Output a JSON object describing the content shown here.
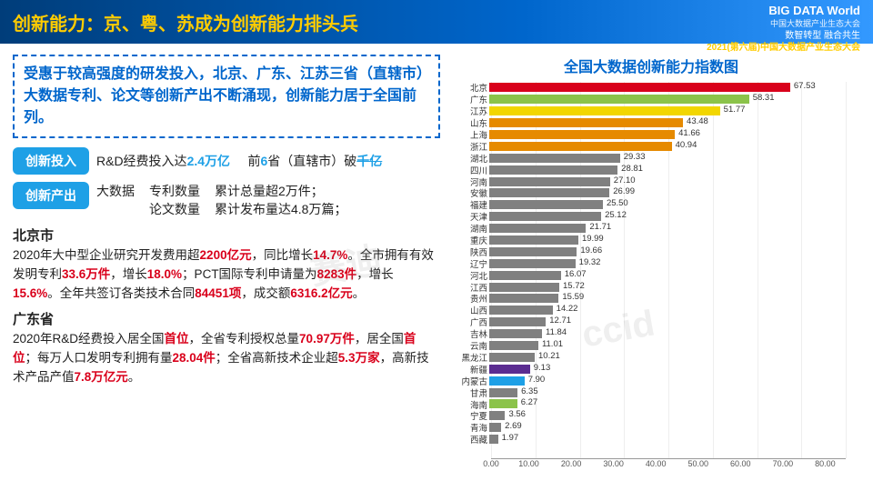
{
  "header": {
    "title": "创新能力：京、粤、苏成为创新能力排头兵",
    "logo": "BIG DATA World",
    "logo_cn": "中国大数据产业生态大会",
    "sub1": "数智转型 融合共生",
    "sub2": "2021(第六届)中国大数据产业生态大会"
  },
  "summary": "受惠于较高强度的研发投入，北京、广东、江苏三省（直辖市）大数据专利、论文等创新产出不断涌现，创新能力居于全国前列。",
  "row1": {
    "tag": "创新投入",
    "t1a": "R&D经费投入达",
    "t1b": "2.4万亿",
    "t2a": "前",
    "t2b": "6",
    "t2c": "省（直辖市）破",
    "t2d": "千亿"
  },
  "row2": {
    "tag": "创新产出",
    "l1": "大数据",
    "c1a": "专利数量",
    "c1b": "论文数量",
    "c2a": "累计总量超2万件；",
    "c2b": "累计发布量达4.8万篇；"
  },
  "cities": {
    "bj_name": "北京市",
    "bj_text_parts": [
      {
        "t": "2020年大中型企业研究开发费用超",
        "r": false
      },
      {
        "t": "2200亿元",
        "r": true
      },
      {
        "t": "，同比增长",
        "r": false
      },
      {
        "t": "14.7%",
        "r": true
      },
      {
        "t": "。全市拥有有效发明专利",
        "r": false
      },
      {
        "t": "33.6万件",
        "r": true
      },
      {
        "t": "，增长",
        "r": false
      },
      {
        "t": "18.0%",
        "r": true
      },
      {
        "t": "；PCT国际专利申请量为",
        "r": false
      },
      {
        "t": "8283件",
        "r": true
      },
      {
        "t": "，增长",
        "r": false
      },
      {
        "t": "15.6%",
        "r": true
      },
      {
        "t": "。全年共签订各类技术合同",
        "r": false
      },
      {
        "t": "84451项",
        "r": true
      },
      {
        "t": "，成交额",
        "r": false
      },
      {
        "t": "6316.2亿元",
        "r": true
      },
      {
        "t": "。",
        "r": false
      }
    ],
    "gd_name": "广东省",
    "gd_text_parts": [
      {
        "t": "2020年R&D经费投入居全国",
        "r": false
      },
      {
        "t": "首位",
        "r": true
      },
      {
        "t": "，全省专利授权总量",
        "r": false
      },
      {
        "t": "70.97万件",
        "r": true
      },
      {
        "t": "，居全国",
        "r": false
      },
      {
        "t": "首位",
        "r": true
      },
      {
        "t": "；每万人口发明专利拥有量",
        "r": false
      },
      {
        "t": "28.04件",
        "r": true
      },
      {
        "t": "；全省高新技术企业超",
        "r": false
      },
      {
        "t": "5.3万家",
        "r": true
      },
      {
        "t": "，高新技术产品产值",
        "r": false
      },
      {
        "t": "7.8万亿元",
        "r": true
      },
      {
        "t": "。",
        "r": false
      }
    ]
  },
  "chart": {
    "title": "全国大数据创新能力指数图",
    "type": "bar-horizontal",
    "xlim": [
      0,
      80
    ],
    "xtick_step": 10,
    "max": 80,
    "label_fontsize": 9.5,
    "title_fontsize": 16,
    "grid_color": "#eeeeee",
    "background": "#ffffff",
    "bars": [
      {
        "label": "北京",
        "value": 67.53,
        "color": "#d9001b"
      },
      {
        "label": "广东",
        "value": 58.31,
        "color": "#8bc34a"
      },
      {
        "label": "江苏",
        "value": 51.77,
        "color": "#f2d600"
      },
      {
        "label": "山东",
        "value": 43.48,
        "color": "#e68a00"
      },
      {
        "label": "上海",
        "value": 41.66,
        "color": "#e68a00"
      },
      {
        "label": "浙江",
        "value": 40.94,
        "color": "#e68a00"
      },
      {
        "label": "湖北",
        "value": 29.33,
        "color": "#808080"
      },
      {
        "label": "四川",
        "value": 28.81,
        "color": "#808080"
      },
      {
        "label": "河南",
        "value": 27.1,
        "color": "#808080"
      },
      {
        "label": "安徽",
        "value": 26.99,
        "color": "#808080"
      },
      {
        "label": "福建",
        "value": 25.5,
        "color": "#808080"
      },
      {
        "label": "天津",
        "value": 25.12,
        "color": "#808080"
      },
      {
        "label": "湖南",
        "value": 21.71,
        "color": "#808080"
      },
      {
        "label": "重庆",
        "value": 19.99,
        "color": "#808080"
      },
      {
        "label": "陕西",
        "value": 19.66,
        "color": "#808080"
      },
      {
        "label": "辽宁",
        "value": 19.32,
        "color": "#808080"
      },
      {
        "label": "河北",
        "value": 16.07,
        "color": "#808080"
      },
      {
        "label": "江西",
        "value": 15.72,
        "color": "#808080"
      },
      {
        "label": "贵州",
        "value": 15.59,
        "color": "#808080"
      },
      {
        "label": "山西",
        "value": 14.22,
        "color": "#808080"
      },
      {
        "label": "广西",
        "value": 12.71,
        "color": "#808080"
      },
      {
        "label": "吉林",
        "value": 11.84,
        "color": "#808080"
      },
      {
        "label": "云南",
        "value": 11.01,
        "color": "#808080"
      },
      {
        "label": "黑龙江",
        "value": 10.21,
        "color": "#808080"
      },
      {
        "label": "新疆",
        "value": 9.13,
        "color": "#5b2c91"
      },
      {
        "label": "内蒙古",
        "value": 7.9,
        "color": "#1ea0e6"
      },
      {
        "label": "甘肃",
        "value": 6.35,
        "color": "#808080"
      },
      {
        "label": "海南",
        "value": 6.27,
        "color": "#8bc34a"
      },
      {
        "label": "宁夏",
        "value": 3.56,
        "color": "#808080"
      },
      {
        "label": "青海",
        "value": 2.69,
        "color": "#808080"
      },
      {
        "label": "西藏",
        "value": 1.97,
        "color": "#808080"
      }
    ],
    "axis_labels": [
      "0.00",
      "10.00",
      "20.00",
      "30.00",
      "40.00",
      "50.00",
      "60.00",
      "70.00",
      "80.00"
    ]
  },
  "watermarks": [
    "赛迪",
    "ccid"
  ]
}
